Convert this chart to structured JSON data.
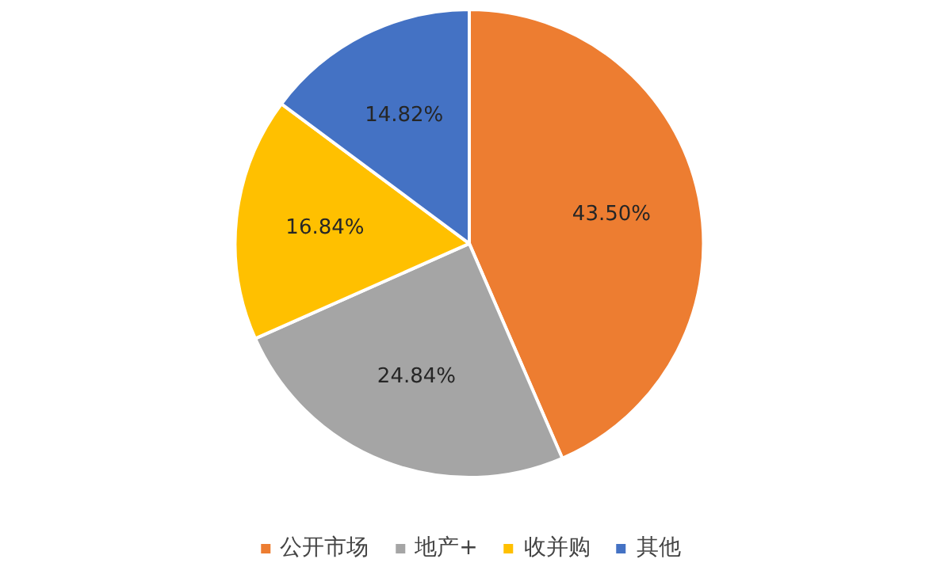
{
  "chart_data": {
    "type": "pie",
    "categories": [
      "公开市场",
      "地产+",
      "收并购",
      "其他"
    ],
    "values": [
      43.5,
      24.84,
      16.84,
      14.82
    ],
    "colors": [
      "#ed7d31",
      "#a5a5a5",
      "#ffc000",
      "#4472c4"
    ],
    "value_labels": [
      "43.50%",
      "24.84%",
      "16.84%",
      "14.82%"
    ],
    "legend": "bottom"
  }
}
